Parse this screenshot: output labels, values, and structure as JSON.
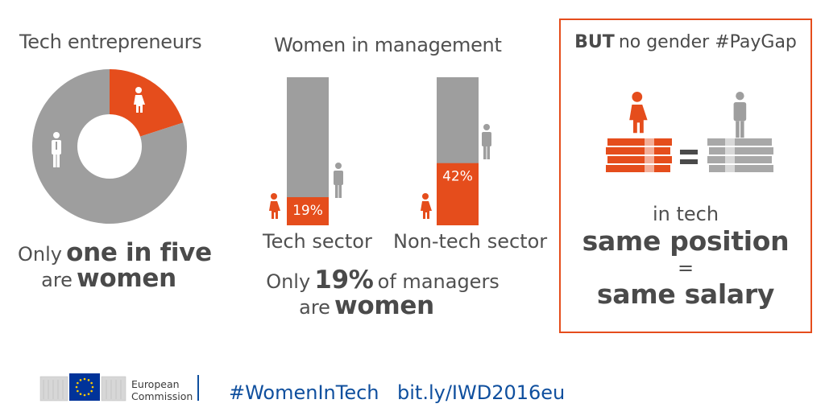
{
  "colors": {
    "orange": "#e54d1c",
    "grey": "#9e9e9e",
    "eu_blue": "#003399",
    "eu_yellow": "#ffcc00",
    "link_blue": "#0f4f9e"
  },
  "entrepreneurs": {
    "title": "Tech entrepreneurs",
    "caption_line1_prefix": "Only",
    "caption_line1_bold": "one in five",
    "caption_line2_prefix": "are",
    "caption_line2_bold": "women"
  },
  "management": {
    "title": "Women in management",
    "caption_line1_prefix": "Only",
    "caption_line1_bold": "19%",
    "caption_line1_suffix": "of managers",
    "caption_line2_prefix": "are",
    "caption_line2_bold": "women"
  },
  "paygap": {
    "title_bold": "BUT",
    "title_rest": "no gender #PayGap",
    "line1": "in tech",
    "line2": "same position",
    "line3": "=",
    "line4": "same salary"
  },
  "chart_data": [
    {
      "type": "pie",
      "title": "Tech entrepreneurs",
      "categories": [
        "women",
        "men"
      ],
      "values": [
        20,
        80
      ],
      "annotation": "Only one in five are women"
    },
    {
      "type": "bar",
      "title": "Women in management",
      "categories": [
        "Tech sector",
        "Non-tech sector"
      ],
      "series": [
        {
          "name": "women",
          "values": [
            19,
            42
          ]
        },
        {
          "name": "men",
          "values": [
            81,
            58
          ]
        }
      ],
      "labels": [
        "19%",
        "42%"
      ],
      "ylim": [
        0,
        100
      ],
      "stacked": true
    }
  ],
  "footer": {
    "org_line1": "European",
    "org_line2": "Commission",
    "hashtag": "#WomenInTech",
    "link": "bit.ly/IWD2016eu"
  }
}
